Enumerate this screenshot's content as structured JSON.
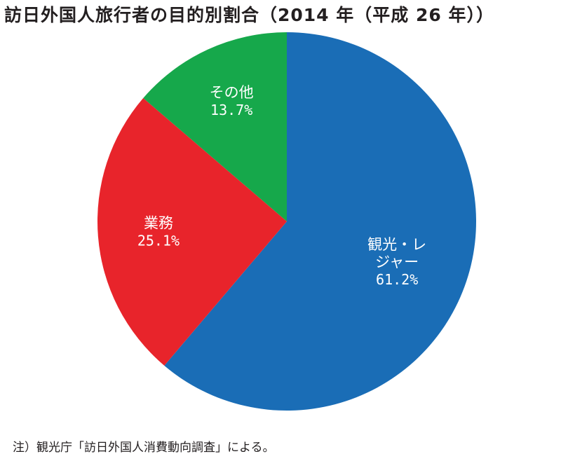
{
  "chart_data": {
    "type": "pie",
    "title": "訪日外国人旅行者の目的別割合（2014 年（平成 26 年））",
    "slices": [
      {
        "label_lines": [
          "観光・レ",
          "ジャー"
        ],
        "value": 61.2,
        "value_label": "61.2%",
        "color": "#1a6db6"
      },
      {
        "label_lines": [
          "業務"
        ],
        "value": 25.1,
        "value_label": "25.1%",
        "color": "#e8242b"
      },
      {
        "label_lines": [
          "その他"
        ],
        "value": 13.7,
        "value_label": "13.7%",
        "color": "#16a84b"
      }
    ],
    "start": "12 o'clock",
    "direction": "clockwise",
    "legend": "none"
  },
  "note": "注）観光庁「訪日外国人消費動向調査」による。"
}
